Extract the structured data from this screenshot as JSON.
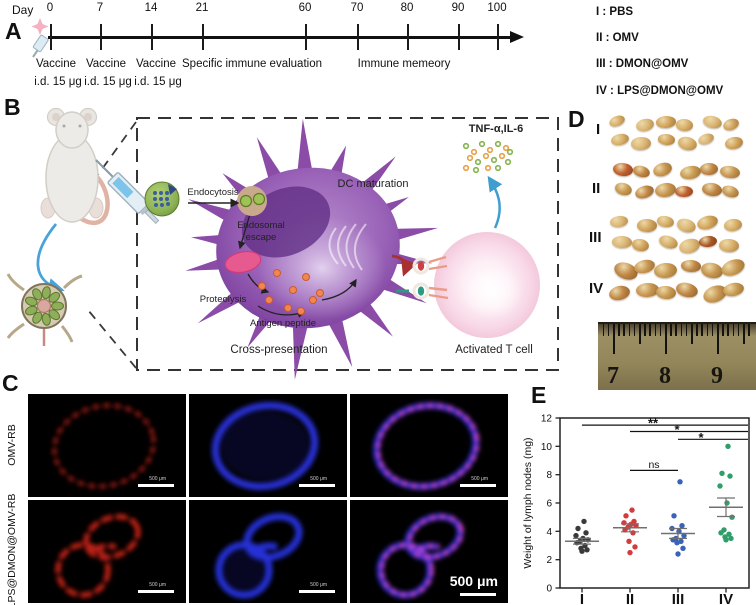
{
  "colors": {
    "group_I": "#3a3a3a",
    "group_II": "#d23c3c",
    "group_III": "#3a62b8",
    "group_IV": "#2f9e68",
    "fluor_red": "#c8211a",
    "fluor_blue": "#2a35e8",
    "fluor_magenta": "#d948c8",
    "dc_purple": "#8a4ca6",
    "tcell_pink": "#f8d9e6",
    "arrow_blue": "#4aa3d8"
  },
  "panelA": {
    "label": "A",
    "day_prefix": "Day",
    "days": [
      "0",
      "7",
      "14",
      "21",
      "60",
      "70",
      "80",
      "90",
      "100"
    ],
    "events": [
      {
        "title": "Vaccine",
        "sub": "i.d. 15 μg"
      },
      {
        "title": "Vaccine",
        "sub": "i.d. 15 μg"
      },
      {
        "title": "Vaccine",
        "sub": "i.d. 15 μg"
      },
      {
        "title": "Specific immune evaluation",
        "sub": ""
      },
      {
        "title": "Immune memeory",
        "sub": ""
      }
    ]
  },
  "legend": {
    "items": [
      {
        "numeral": "I",
        "name": "PBS"
      },
      {
        "numeral": "II",
        "name": "OMV"
      },
      {
        "numeral": "III",
        "name": "DMON@OMV"
      },
      {
        "numeral": "IV",
        "name": "LPS@DMON@OMV"
      }
    ]
  },
  "panelB": {
    "label": "B",
    "endocytosis": "Endocytosis",
    "endosomal_escape_1": "Endosomal",
    "endosomal_escape_2": "escape",
    "proteolysis": "Proteolysis",
    "antigen_peptide": "Antigen peptide",
    "cross_presentation": "Cross-presentation",
    "dc_maturation": "DC maturation",
    "cytokines": "TNF-α,IL-6",
    "t_cell": "Activated T cell"
  },
  "panelC": {
    "label": "C",
    "row_labels": [
      "OMV-RB",
      "LPS@DMON@OMV-RB"
    ],
    "channels": [
      "red",
      "blue",
      "merge"
    ],
    "scale_bar_label": "500 μm"
  },
  "panelD": {
    "label": "D",
    "groups": [
      "I",
      "II",
      "III",
      "IV"
    ],
    "ruler_numbers": [
      "7",
      "8",
      "9"
    ]
  },
  "panelE": {
    "label": "E"
  },
  "chart_data": {
    "type": "scatter",
    "title": "",
    "xlabel": "",
    "ylabel": "Weight of lymph nodes (mg)",
    "ylim": [
      0,
      12
    ],
    "yticks": [
      0,
      2,
      4,
      6,
      8,
      10,
      12
    ],
    "categories": [
      "I",
      "II",
      "III",
      "IV"
    ],
    "grid": false,
    "legend_position": "none",
    "series": [
      {
        "name": "I",
        "color": "#3a3a3a",
        "mean": 3.3,
        "sem": 0.2,
        "values": [
          4.7,
          4.2,
          3.9,
          3.7,
          3.5,
          3.4,
          3.3,
          3.2,
          3.0,
          2.8,
          2.7,
          2.6
        ]
      },
      {
        "name": "II",
        "color": "#d23c3c",
        "mean": 4.25,
        "sem": 0.28,
        "values": [
          5.5,
          5.1,
          4.7,
          4.6,
          4.5,
          4.4,
          4.3,
          4.1,
          3.9,
          3.3,
          2.9,
          2.5
        ]
      },
      {
        "name": "III",
        "color": "#3a62b8",
        "mean": 3.85,
        "sem": 0.35,
        "values": [
          7.5,
          5.1,
          4.4,
          4.2,
          4.0,
          3.7,
          3.5,
          3.4,
          3.3,
          3.2,
          2.8,
          2.4
        ]
      },
      {
        "name": "IV",
        "color": "#2f9e68",
        "mean": 5.7,
        "sem": 0.65,
        "values": [
          10.0,
          8.1,
          7.9,
          7.2,
          6.0,
          5.0,
          4.1,
          3.9,
          3.8,
          3.6,
          3.5,
          3.4
        ]
      }
    ],
    "significance": [
      {
        "groups": [
          "I",
          "IV"
        ],
        "label": "**",
        "y": 11.5
      },
      {
        "groups": [
          "II",
          "IV"
        ],
        "label": "*",
        "y": 11.05
      },
      {
        "groups": [
          "III",
          "IV"
        ],
        "label": "*",
        "y": 10.5
      },
      {
        "groups": [
          "II",
          "III"
        ],
        "label": "ns",
        "y": 8.3
      }
    ]
  }
}
